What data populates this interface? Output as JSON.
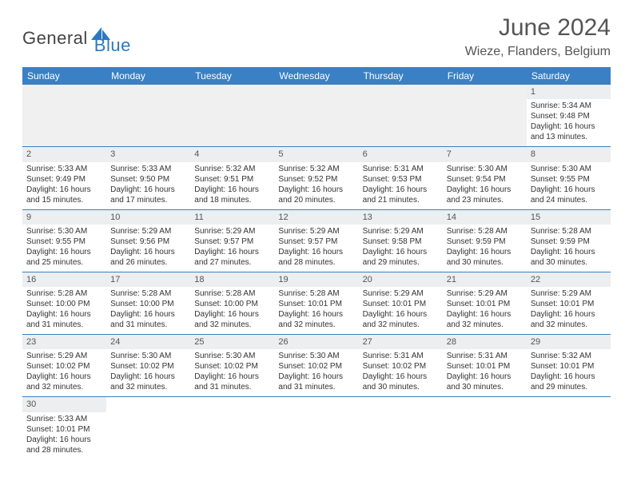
{
  "logo": {
    "part1": "General",
    "part2": "Blue"
  },
  "title": "June 2024",
  "location": "Wieze, Flanders, Belgium",
  "colors": {
    "header_bg": "#3a80c4",
    "header_text": "#ffffff",
    "daynum_bg": "#eceeef",
    "border": "#3a80c4",
    "logo_blue": "#2b79c2",
    "text": "#333333"
  },
  "weekdays": [
    "Sunday",
    "Monday",
    "Tuesday",
    "Wednesday",
    "Thursday",
    "Friday",
    "Saturday"
  ],
  "weeks": [
    [
      null,
      null,
      null,
      null,
      null,
      null,
      {
        "n": "1",
        "sr": "Sunrise: 5:34 AM",
        "ss": "Sunset: 9:48 PM",
        "d1": "Daylight: 16 hours",
        "d2": "and 13 minutes."
      }
    ],
    [
      {
        "n": "2",
        "sr": "Sunrise: 5:33 AM",
        "ss": "Sunset: 9:49 PM",
        "d1": "Daylight: 16 hours",
        "d2": "and 15 minutes."
      },
      {
        "n": "3",
        "sr": "Sunrise: 5:33 AM",
        "ss": "Sunset: 9:50 PM",
        "d1": "Daylight: 16 hours",
        "d2": "and 17 minutes."
      },
      {
        "n": "4",
        "sr": "Sunrise: 5:32 AM",
        "ss": "Sunset: 9:51 PM",
        "d1": "Daylight: 16 hours",
        "d2": "and 18 minutes."
      },
      {
        "n": "5",
        "sr": "Sunrise: 5:32 AM",
        "ss": "Sunset: 9:52 PM",
        "d1": "Daylight: 16 hours",
        "d2": "and 20 minutes."
      },
      {
        "n": "6",
        "sr": "Sunrise: 5:31 AM",
        "ss": "Sunset: 9:53 PM",
        "d1": "Daylight: 16 hours",
        "d2": "and 21 minutes."
      },
      {
        "n": "7",
        "sr": "Sunrise: 5:30 AM",
        "ss": "Sunset: 9:54 PM",
        "d1": "Daylight: 16 hours",
        "d2": "and 23 minutes."
      },
      {
        "n": "8",
        "sr": "Sunrise: 5:30 AM",
        "ss": "Sunset: 9:55 PM",
        "d1": "Daylight: 16 hours",
        "d2": "and 24 minutes."
      }
    ],
    [
      {
        "n": "9",
        "sr": "Sunrise: 5:30 AM",
        "ss": "Sunset: 9:55 PM",
        "d1": "Daylight: 16 hours",
        "d2": "and 25 minutes."
      },
      {
        "n": "10",
        "sr": "Sunrise: 5:29 AM",
        "ss": "Sunset: 9:56 PM",
        "d1": "Daylight: 16 hours",
        "d2": "and 26 minutes."
      },
      {
        "n": "11",
        "sr": "Sunrise: 5:29 AM",
        "ss": "Sunset: 9:57 PM",
        "d1": "Daylight: 16 hours",
        "d2": "and 27 minutes."
      },
      {
        "n": "12",
        "sr": "Sunrise: 5:29 AM",
        "ss": "Sunset: 9:57 PM",
        "d1": "Daylight: 16 hours",
        "d2": "and 28 minutes."
      },
      {
        "n": "13",
        "sr": "Sunrise: 5:29 AM",
        "ss": "Sunset: 9:58 PM",
        "d1": "Daylight: 16 hours",
        "d2": "and 29 minutes."
      },
      {
        "n": "14",
        "sr": "Sunrise: 5:28 AM",
        "ss": "Sunset: 9:59 PM",
        "d1": "Daylight: 16 hours",
        "d2": "and 30 minutes."
      },
      {
        "n": "15",
        "sr": "Sunrise: 5:28 AM",
        "ss": "Sunset: 9:59 PM",
        "d1": "Daylight: 16 hours",
        "d2": "and 30 minutes."
      }
    ],
    [
      {
        "n": "16",
        "sr": "Sunrise: 5:28 AM",
        "ss": "Sunset: 10:00 PM",
        "d1": "Daylight: 16 hours",
        "d2": "and 31 minutes."
      },
      {
        "n": "17",
        "sr": "Sunrise: 5:28 AM",
        "ss": "Sunset: 10:00 PM",
        "d1": "Daylight: 16 hours",
        "d2": "and 31 minutes."
      },
      {
        "n": "18",
        "sr": "Sunrise: 5:28 AM",
        "ss": "Sunset: 10:00 PM",
        "d1": "Daylight: 16 hours",
        "d2": "and 32 minutes."
      },
      {
        "n": "19",
        "sr": "Sunrise: 5:28 AM",
        "ss": "Sunset: 10:01 PM",
        "d1": "Daylight: 16 hours",
        "d2": "and 32 minutes."
      },
      {
        "n": "20",
        "sr": "Sunrise: 5:29 AM",
        "ss": "Sunset: 10:01 PM",
        "d1": "Daylight: 16 hours",
        "d2": "and 32 minutes."
      },
      {
        "n": "21",
        "sr": "Sunrise: 5:29 AM",
        "ss": "Sunset: 10:01 PM",
        "d1": "Daylight: 16 hours",
        "d2": "and 32 minutes."
      },
      {
        "n": "22",
        "sr": "Sunrise: 5:29 AM",
        "ss": "Sunset: 10:01 PM",
        "d1": "Daylight: 16 hours",
        "d2": "and 32 minutes."
      }
    ],
    [
      {
        "n": "23",
        "sr": "Sunrise: 5:29 AM",
        "ss": "Sunset: 10:02 PM",
        "d1": "Daylight: 16 hours",
        "d2": "and 32 minutes."
      },
      {
        "n": "24",
        "sr": "Sunrise: 5:30 AM",
        "ss": "Sunset: 10:02 PM",
        "d1": "Daylight: 16 hours",
        "d2": "and 32 minutes."
      },
      {
        "n": "25",
        "sr": "Sunrise: 5:30 AM",
        "ss": "Sunset: 10:02 PM",
        "d1": "Daylight: 16 hours",
        "d2": "and 31 minutes."
      },
      {
        "n": "26",
        "sr": "Sunrise: 5:30 AM",
        "ss": "Sunset: 10:02 PM",
        "d1": "Daylight: 16 hours",
        "d2": "and 31 minutes."
      },
      {
        "n": "27",
        "sr": "Sunrise: 5:31 AM",
        "ss": "Sunset: 10:02 PM",
        "d1": "Daylight: 16 hours",
        "d2": "and 30 minutes."
      },
      {
        "n": "28",
        "sr": "Sunrise: 5:31 AM",
        "ss": "Sunset: 10:01 PM",
        "d1": "Daylight: 16 hours",
        "d2": "and 30 minutes."
      },
      {
        "n": "29",
        "sr": "Sunrise: 5:32 AM",
        "ss": "Sunset: 10:01 PM",
        "d1": "Daylight: 16 hours",
        "d2": "and 29 minutes."
      }
    ],
    [
      {
        "n": "30",
        "sr": "Sunrise: 5:33 AM",
        "ss": "Sunset: 10:01 PM",
        "d1": "Daylight: 16 hours",
        "d2": "and 28 minutes."
      },
      null,
      null,
      null,
      null,
      null,
      null
    ]
  ]
}
